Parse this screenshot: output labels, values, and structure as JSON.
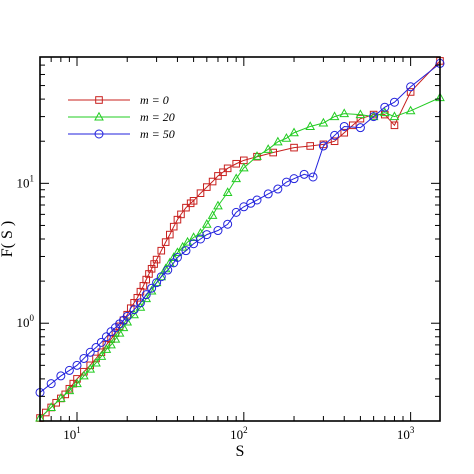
{
  "chart_data": {
    "type": "line",
    "title": "",
    "xlabel": "S",
    "ylabel": "F( S )",
    "xscale": "log",
    "yscale": "log",
    "xlim": [
      6,
      1500
    ],
    "ylim": [
      0.2,
      80
    ],
    "grid": false,
    "legend_position": "top-left",
    "x_ticks": [
      {
        "value": 10,
        "base": "10",
        "exp": "1"
      },
      {
        "value": 100,
        "base": "10",
        "exp": "2"
      },
      {
        "value": 1000,
        "base": "10",
        "exp": "3"
      }
    ],
    "y_ticks": [
      {
        "value": 1,
        "base": "10",
        "exp": "0"
      },
      {
        "value": 10,
        "base": "10",
        "exp": "1"
      }
    ],
    "series": [
      {
        "name": "m = 0",
        "color": "#c8201e",
        "marker": "square",
        "points": [
          [
            6,
            0.21
          ],
          [
            6.5,
            0.23
          ],
          [
            7,
            0.25
          ],
          [
            7.5,
            0.27
          ],
          [
            8,
            0.29
          ],
          [
            8.5,
            0.31
          ],
          [
            9,
            0.34
          ],
          [
            9.5,
            0.37
          ],
          [
            10,
            0.4
          ],
          [
            11,
            0.45
          ],
          [
            12,
            0.5
          ],
          [
            13,
            0.56
          ],
          [
            14,
            0.62
          ],
          [
            15,
            0.7
          ],
          [
            16,
            0.77
          ],
          [
            17,
            0.85
          ],
          [
            18,
            0.95
          ],
          [
            19,
            1.05
          ],
          [
            20,
            1.15
          ],
          [
            21,
            1.28
          ],
          [
            22,
            1.4
          ],
          [
            23,
            1.52
          ],
          [
            24,
            1.68
          ],
          [
            25,
            1.85
          ],
          [
            26,
            2.05
          ],
          [
            27,
            2.25
          ],
          [
            28,
            2.45
          ],
          [
            29,
            2.65
          ],
          [
            30,
            2.85
          ],
          [
            32,
            3.3
          ],
          [
            34,
            3.8
          ],
          [
            36,
            4.3
          ],
          [
            38,
            4.9
          ],
          [
            40,
            5.5
          ],
          [
            42,
            6.0
          ],
          [
            45,
            6.7
          ],
          [
            48,
            7.2
          ],
          [
            50,
            7.5
          ],
          [
            55,
            8.5
          ],
          [
            60,
            9.4
          ],
          [
            65,
            10.3
          ],
          [
            70,
            11.3
          ],
          [
            75,
            12.0
          ],
          [
            80,
            12.8
          ],
          [
            90,
            13.8
          ],
          [
            100,
            14.6
          ],
          [
            120,
            15.5
          ],
          [
            150,
            16.6
          ],
          [
            200,
            18.0
          ],
          [
            250,
            18.5
          ],
          [
            300,
            19.0
          ],
          [
            350,
            20.0
          ],
          [
            400,
            23.0
          ],
          [
            450,
            26.0
          ],
          [
            500,
            29.0
          ],
          [
            600,
            31.0
          ],
          [
            700,
            31.0
          ],
          [
            800,
            26.0
          ],
          [
            1000,
            45.0
          ],
          [
            1500,
            75.0
          ]
        ]
      },
      {
        "name": "m = 20",
        "color": "#22cc22",
        "marker": "triangle",
        "points": [
          [
            6,
            0.21
          ],
          [
            7,
            0.25
          ],
          [
            8,
            0.29
          ],
          [
            9,
            0.33
          ],
          [
            10,
            0.37
          ],
          [
            11,
            0.42
          ],
          [
            12,
            0.47
          ],
          [
            13,
            0.52
          ],
          [
            14,
            0.58
          ],
          [
            15,
            0.65
          ],
          [
            16,
            0.7
          ],
          [
            17,
            0.77
          ],
          [
            18,
            0.85
          ],
          [
            19,
            0.93
          ],
          [
            20,
            1.02
          ],
          [
            22,
            1.15
          ],
          [
            24,
            1.3
          ],
          [
            26,
            1.5
          ],
          [
            28,
            1.7
          ],
          [
            30,
            1.95
          ],
          [
            32,
            2.15
          ],
          [
            34,
            2.45
          ],
          [
            36,
            2.7
          ],
          [
            38,
            2.95
          ],
          [
            40,
            3.2
          ],
          [
            43,
            3.5
          ],
          [
            46,
            3.8
          ],
          [
            50,
            4.1
          ],
          [
            55,
            4.4
          ],
          [
            60,
            5.1
          ],
          [
            65,
            5.9
          ],
          [
            70,
            6.9
          ],
          [
            80,
            8.6
          ],
          [
            90,
            10.8
          ],
          [
            100,
            12.9
          ],
          [
            120,
            15.6
          ],
          [
            140,
            17.5
          ],
          [
            160,
            19.8
          ],
          [
            180,
            21.0
          ],
          [
            200,
            23.0
          ],
          [
            250,
            25.5
          ],
          [
            300,
            27.0
          ],
          [
            350,
            30.0
          ],
          [
            400,
            31.5
          ],
          [
            500,
            31.0
          ],
          [
            600,
            30.0
          ],
          [
            700,
            32.0
          ],
          [
            800,
            30.0
          ],
          [
            1000,
            33.0
          ],
          [
            1500,
            41.0
          ]
        ]
      },
      {
        "name": "m = 50",
        "color": "#2222dd",
        "marker": "circle",
        "points": [
          [
            6,
            0.32
          ],
          [
            7,
            0.37
          ],
          [
            8,
            0.42
          ],
          [
            9,
            0.46
          ],
          [
            10,
            0.5
          ],
          [
            11,
            0.56
          ],
          [
            12,
            0.62
          ],
          [
            13,
            0.67
          ],
          [
            14,
            0.73
          ],
          [
            15,
            0.8
          ],
          [
            16,
            0.87
          ],
          [
            17,
            0.93
          ],
          [
            18,
            0.99
          ],
          [
            19,
            1.05
          ],
          [
            20,
            1.12
          ],
          [
            22,
            1.25
          ],
          [
            24,
            1.4
          ],
          [
            26,
            1.6
          ],
          [
            28,
            1.78
          ],
          [
            30,
            1.95
          ],
          [
            32,
            2.15
          ],
          [
            35,
            2.4
          ],
          [
            38,
            2.7
          ],
          [
            40,
            2.95
          ],
          [
            45,
            3.3
          ],
          [
            50,
            3.7
          ],
          [
            55,
            4.0
          ],
          [
            60,
            4.3
          ],
          [
            70,
            4.6
          ],
          [
            80,
            5.1
          ],
          [
            90,
            6.2
          ],
          [
            100,
            6.8
          ],
          [
            110,
            7.2
          ],
          [
            120,
            7.6
          ],
          [
            140,
            8.4
          ],
          [
            160,
            9.1
          ],
          [
            180,
            10.2
          ],
          [
            200,
            10.8
          ],
          [
            230,
            11.6
          ],
          [
            260,
            11.1
          ],
          [
            300,
            18.5
          ],
          [
            350,
            22.0
          ],
          [
            400,
            25.5
          ],
          [
            500,
            25.0
          ],
          [
            600,
            30.0
          ],
          [
            700,
            35.0
          ],
          [
            800,
            38.0
          ],
          [
            1000,
            49.0
          ],
          [
            1500,
            72.0
          ]
        ]
      }
    ]
  }
}
